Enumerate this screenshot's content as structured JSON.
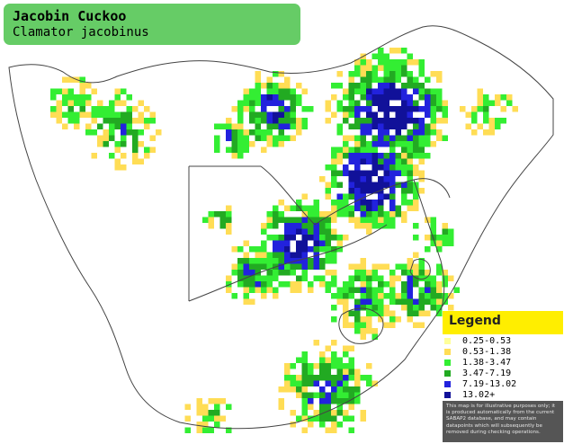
{
  "title": {
    "common_name": "Jacobin Cuckoo",
    "scientific_name": "Clamator jacobinus"
  },
  "legend": {
    "title": "Legend",
    "items": [
      {
        "label": "0.25-0.53",
        "color": "#ffff99"
      },
      {
        "label": "0.53-1.38",
        "color": "#ffdd55"
      },
      {
        "label": "1.38-3.47",
        "color": "#33ee33"
      },
      {
        "label": "3.47-7.19",
        "color": "#22aa22"
      },
      {
        "label": "7.19-13.02",
        "color": "#2222dd"
      },
      {
        "label": "13.02+",
        "color": "#111199"
      }
    ],
    "disclaimer": "This map is for illustrative purposes only; it is produced automatically from the current SABAP2 database, and may contain datapoints which will subsequently be removed during checking operations."
  },
  "map_colors": {
    "land": "#ffffff",
    "border": "#444444",
    "grid_line": "#e8e8e8"
  }
}
